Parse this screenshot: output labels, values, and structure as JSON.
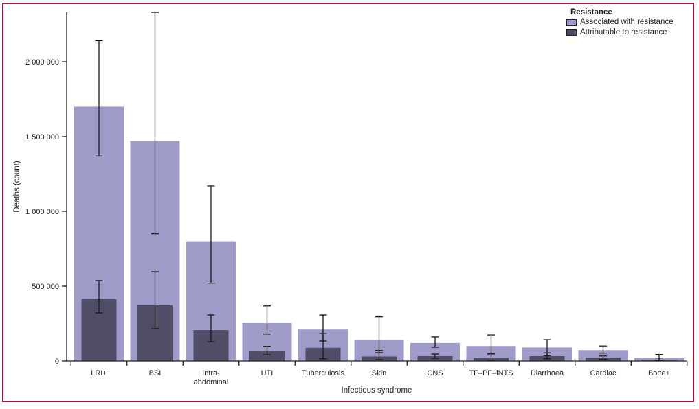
{
  "figure": {
    "frame_color": "#a01349",
    "background": "#ffffff",
    "text_color": "#231f20",
    "error_bar_color": "#1a1a1a"
  },
  "legend": {
    "title": "Resistance",
    "items": [
      {
        "label": "Associated with resistance",
        "color": "#9f9cc9"
      },
      {
        "label": "Attributable to resistance",
        "color": "#504d66"
      }
    ]
  },
  "chart_data": {
    "type": "bar",
    "title": "",
    "xlabel": "Infectious syndrome",
    "ylabel": "Deaths (count)",
    "ylim": [
      0,
      2330000
    ],
    "grid": false,
    "legend_position": "top-right",
    "bar_style": "overlaid",
    "error_bars": "uncertainty intervals with caps",
    "yticks": {
      "values": [
        0,
        500000,
        1000000,
        1500000,
        2000000
      ],
      "labels": [
        "0",
        "500 000",
        "1 000 000",
        "1 500 000",
        "2 000 000"
      ]
    },
    "categories": [
      "LRI+",
      "BSI",
      "Intra-abdominal",
      "UTI",
      "Tuberculosis",
      "Skin",
      "CNS",
      "TF–PF–iNTS",
      "Diarrhoea",
      "Cardiac",
      "Bone+"
    ],
    "category_lines": [
      [
        "LRI+"
      ],
      [
        "BSI"
      ],
      [
        "Intra-",
        "abdominal"
      ],
      [
        "UTI"
      ],
      [
        "Tuberculosis"
      ],
      [
        "Skin"
      ],
      [
        "CNS"
      ],
      [
        "TF–PF–iNTS"
      ],
      [
        "Diarrhoea"
      ],
      [
        "Cardiac"
      ],
      [
        "Bone+"
      ]
    ],
    "series": [
      {
        "name": "Associated with resistance",
        "color": "#9f9cc9",
        "values": [
          1700000,
          1470000,
          800000,
          255000,
          210000,
          140000,
          120000,
          100000,
          90000,
          72000,
          20000
        ],
        "ci_low": [
          1370000,
          850000,
          520000,
          180000,
          133000,
          55000,
          92000,
          47000,
          35000,
          52000,
          5000
        ],
        "ci_high": [
          2140000,
          2330000,
          1170000,
          368000,
          307000,
          295000,
          161000,
          174000,
          142000,
          100000,
          43000
        ]
      },
      {
        "name": "Attributable to resistance",
        "color": "#504d66",
        "values": [
          413000,
          372000,
          206000,
          64000,
          88000,
          30000,
          32000,
          20000,
          32000,
          23000,
          9000
        ],
        "ci_low": [
          321000,
          216000,
          128000,
          41000,
          15000,
          9000,
          18000,
          3000,
          15000,
          12000,
          3000
        ],
        "ci_high": [
          537000,
          596000,
          307000,
          98000,
          183000,
          70000,
          46000,
          47000,
          54000,
          33000,
          20000
        ]
      }
    ]
  }
}
